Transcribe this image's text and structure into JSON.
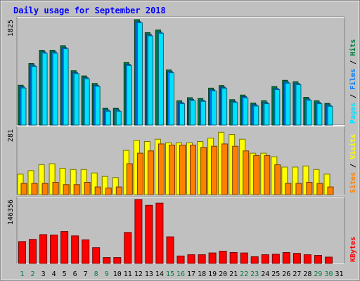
{
  "chart_data": {
    "type": "bar",
    "title": "Daily usage for September 2018",
    "categories": [
      "1",
      "2",
      "3",
      "4",
      "5",
      "6",
      "7",
      "8",
      "9",
      "10",
      "11",
      "12",
      "13",
      "14",
      "15",
      "16",
      "17",
      "18",
      "19",
      "20",
      "21",
      "22",
      "23",
      "24",
      "25",
      "26",
      "27",
      "28",
      "29",
      "30",
      "31"
    ],
    "weekend_days": [
      1,
      2,
      8,
      9,
      15,
      16,
      22,
      23,
      29,
      30
    ],
    "panels": [
      {
        "id": "pages-files-hits",
        "max_label": "1825",
        "ylim": [
          0,
          1825
        ],
        "side_label": [
          "Pages",
          "Files",
          "Hits"
        ],
        "series": [
          {
            "name": "Hits",
            "color": "#008040",
            "values": [
              690,
              1065,
              1295,
              1295,
              1375,
              940,
              850,
              720,
              290,
              290,
              1085,
              1825,
              1600,
              1645,
              955,
              420,
              475,
              460,
              640,
              685,
              440,
              520,
              380,
              420,
              665,
              775,
              750,
              480,
              420,
              375,
              0
            ]
          },
          {
            "name": "Files",
            "color": "#0080ff",
            "values": [
              660,
              1035,
              1265,
              1265,
              1340,
              910,
              820,
              690,
              260,
              260,
              1050,
              1790,
              1565,
              1610,
              925,
              390,
              445,
              430,
              610,
              655,
              410,
              490,
              350,
              390,
              635,
              745,
              720,
              450,
              390,
              345,
              0
            ]
          },
          {
            "name": "Pages",
            "color": "#00e0ff",
            "values": [
              640,
              1015,
              1245,
              1245,
              1320,
              890,
              800,
              670,
              240,
              240,
              1030,
              1770,
              1545,
              1590,
              905,
              370,
              425,
              410,
              590,
              635,
              390,
              470,
              330,
              370,
              615,
              725,
              700,
              430,
              370,
              325,
              0
            ]
          }
        ]
      },
      {
        "id": "visits-sites",
        "max_label": "281",
        "ylim": [
          0,
          281
        ],
        "side_label": [
          "Sites",
          "Visits"
        ],
        "series": [
          {
            "name": "Visits",
            "color": "#ffff00",
            "values": [
              88,
              103,
              128,
              133,
              113,
              108,
              108,
              93,
              78,
              73,
              190,
              233,
              228,
              238,
              223,
              223,
              223,
              228,
              243,
              268,
              258,
              238,
              178,
              178,
              163,
              118,
              118,
              123,
              108,
              88,
              0
            ]
          },
          {
            "name": "Sites",
            "color": "#ff8000",
            "values": [
              48,
              48,
              48,
              53,
              43,
              43,
              53,
              33,
              28,
              33,
              133,
              178,
              188,
              218,
              213,
              213,
              213,
              203,
              208,
              218,
              208,
              188,
              168,
              168,
              128,
              48,
              48,
              53,
              48,
              33,
              0
            ]
          }
        ]
      },
      {
        "id": "kbytes",
        "max_label": "146356",
        "ylim": [
          0,
          146356
        ],
        "side_label": [
          "KBytes"
        ],
        "series": [
          {
            "name": "KBytes",
            "color": "#ff0000",
            "values": [
              50000,
              55000,
              66000,
              65000,
              73000,
              63000,
              54000,
              36000,
              13500,
              13500,
              71000,
              146356,
              133000,
              138000,
              61000,
              17000,
              20000,
              20000,
              24000,
              28000,
              25000,
              24000,
              15500,
              20000,
              21000,
              25000,
              23000,
              20000,
              18500,
              14500,
              0
            ]
          }
        ]
      }
    ]
  }
}
